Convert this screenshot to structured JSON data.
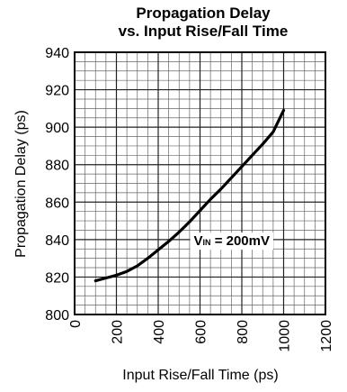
{
  "chart_data": {
    "type": "line",
    "title_lines": [
      "Propagation Delay",
      "vs. Input Rise/Fall Time"
    ],
    "xlabel": "Input Rise/Fall Time (ps)",
    "ylabel": "Propagation Delay (ps)",
    "xlim": [
      0,
      1200
    ],
    "ylim": [
      800,
      940
    ],
    "x_ticks": [
      "0",
      "200",
      "400",
      "600",
      "800",
      "1000",
      "1200"
    ],
    "y_ticks": [
      "800",
      "820",
      "840",
      "860",
      "880",
      "900",
      "920",
      "940"
    ],
    "grid": true,
    "annotation": {
      "main": "V",
      "sub": "IN",
      "rest": " = 200mV"
    },
    "series": [
      {
        "x": [
          100,
          150,
          200,
          250,
          300,
          350,
          400,
          450,
          500,
          550,
          600,
          650,
          700,
          750,
          800,
          850,
          900,
          950,
          1000
        ],
        "y": [
          818,
          819.5,
          821,
          823,
          826,
          830,
          834.5,
          839,
          844,
          849.5,
          855.5,
          861.5,
          867,
          873,
          879,
          885,
          891,
          897.5,
          909
        ]
      }
    ]
  }
}
